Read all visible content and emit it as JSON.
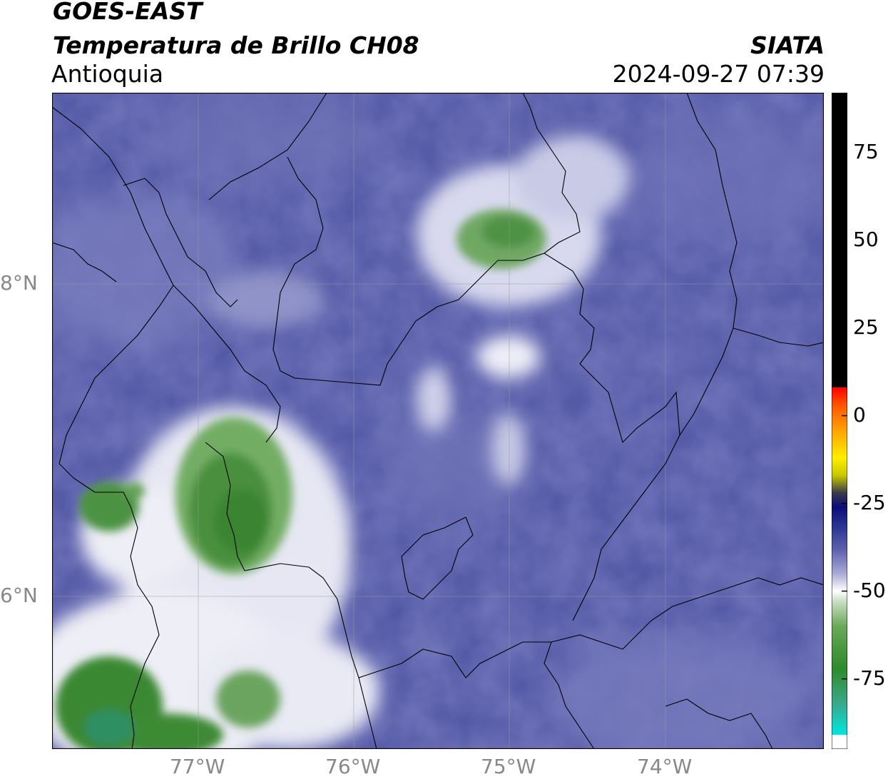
{
  "header": {
    "satellite": "GOES-EAST",
    "product": "Temperatura de Brillo CH08",
    "region": "Antioquia",
    "organization": "SIATA",
    "timestamp": "2024-09-27 07:39"
  },
  "axes": {
    "lon_labels": [
      "77°W",
      "76°W",
      "75°W",
      "74°W"
    ],
    "lat_labels": [
      "8°N",
      "6°N"
    ]
  },
  "colorbar": {
    "tick_labels": [
      "75",
      "50",
      "25",
      "0",
      "-25",
      "-50",
      "-75"
    ],
    "tick_values": [
      75,
      50,
      25,
      0,
      -25,
      -50,
      -75
    ],
    "range": [
      -95,
      92
    ],
    "stops": [
      {
        "v": -95,
        "c": "#ffffff"
      },
      {
        "v": -91,
        "c": "#ffffff"
      },
      {
        "v": -90.9,
        "c": "#00e6de"
      },
      {
        "v": -82,
        "c": "#3aa88a"
      },
      {
        "v": -72,
        "c": "#2f8a2a"
      },
      {
        "v": -60,
        "c": "#6aa85a"
      },
      {
        "v": -53,
        "c": "#c9dfc2"
      },
      {
        "v": -50,
        "c": "#ffffff"
      },
      {
        "v": -45,
        "c": "#a9aad6"
      },
      {
        "v": -38,
        "c": "#5c5fae"
      },
      {
        "v": -30,
        "c": "#1e2a88"
      },
      {
        "v": -26,
        "c": "#0b0b7a"
      },
      {
        "v": -22,
        "c": "#3a3a4a"
      },
      {
        "v": -17,
        "c": "#c8c800"
      },
      {
        "v": -12,
        "c": "#ffee00"
      },
      {
        "v": -5,
        "c": "#ffaa00"
      },
      {
        "v": 3,
        "c": "#ff5500"
      },
      {
        "v": 8,
        "c": "#ff0000"
      },
      {
        "v": 8.1,
        "c": "#000000"
      },
      {
        "v": 92,
        "c": "#000000"
      }
    ]
  },
  "colors": {
    "background_cloudfree": "#4a4f9e",
    "cold_green": "#3d8a36",
    "white": "#ffffff",
    "border": "#000000",
    "grid": "#9a9a9a"
  }
}
